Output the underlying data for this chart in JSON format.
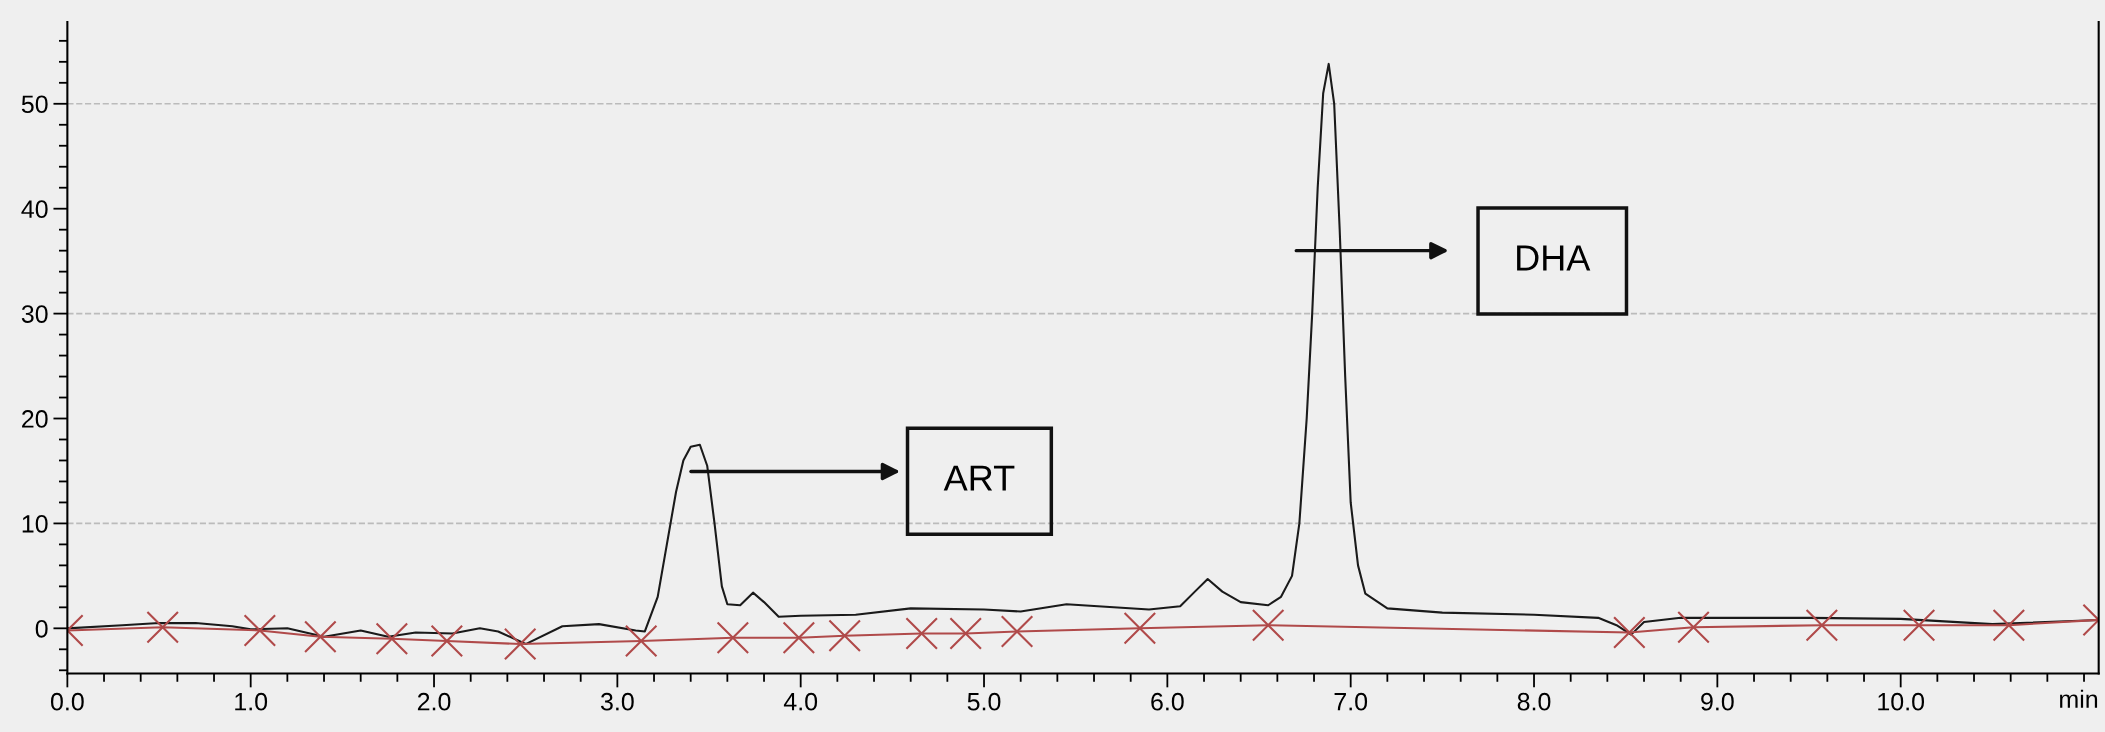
{
  "chart_data": {
    "type": "line",
    "xlabel": "min",
    "xlim": [
      0,
      11.08
    ],
    "ylim": [
      -4.3,
      57.8
    ],
    "xticks": [
      {
        "value": 0,
        "label": "0.0"
      },
      {
        "value": 1,
        "label": "1.0"
      },
      {
        "value": 2,
        "label": "2.0"
      },
      {
        "value": 3,
        "label": "3.0"
      },
      {
        "value": 4,
        "label": "4.0"
      },
      {
        "value": 5,
        "label": "5.0"
      },
      {
        "value": 6,
        "label": "6.0"
      },
      {
        "value": 7,
        "label": "7.0"
      },
      {
        "value": 8,
        "label": "8.0"
      },
      {
        "value": 9,
        "label": "9.0"
      },
      {
        "value": 10,
        "label": "10.0"
      }
    ],
    "yticks": [
      0,
      10,
      20,
      30,
      40,
      50
    ],
    "ref_lines": [
      {
        "axis": "y",
        "value": 10,
        "color": "#bbbbbb",
        "line_style": "dashed"
      },
      {
        "axis": "y",
        "value": 30,
        "color": "#bbbbbb",
        "line_style": "dashed"
      },
      {
        "axis": "y",
        "value": 50,
        "color": "#bbbbbb",
        "line_style": "dashed"
      }
    ],
    "annotations": [
      "ART",
      "DHA"
    ],
    "series": [
      {
        "color": "#1a1a1a",
        "marker": "none",
        "line_style": "solid",
        "x": [
          0.0,
          0.3,
          0.5,
          0.7,
          0.9,
          1.0,
          1.2,
          1.4,
          1.6,
          1.75,
          1.9,
          2.1,
          2.25,
          2.35,
          2.5,
          2.7,
          2.9,
          3.1,
          3.15,
          3.22,
          3.27,
          3.32,
          3.36,
          3.4,
          3.45,
          3.49,
          3.53,
          3.57,
          3.6,
          3.67,
          3.74,
          3.8,
          3.88,
          4.0,
          4.3,
          4.6,
          5.0,
          5.2,
          5.45,
          5.9,
          6.07,
          6.15,
          6.22,
          6.3,
          6.4,
          6.55,
          6.62,
          6.68,
          6.72,
          6.76,
          6.79,
          6.82,
          6.85,
          6.88,
          6.91,
          6.94,
          6.97,
          7.0,
          7.04,
          7.08,
          7.2,
          7.5,
          8.0,
          8.35,
          8.45,
          8.53,
          8.6,
          8.8,
          9.5,
          10.0,
          10.5,
          11.08
        ],
        "values": [
          0.0,
          0.3,
          0.5,
          0.5,
          0.2,
          -0.1,
          0.0,
          -0.8,
          -0.2,
          -0.8,
          -0.4,
          -0.5,
          0.0,
          -0.3,
          -1.5,
          0.2,
          0.4,
          -0.2,
          -0.3,
          3.0,
          8.0,
          13.0,
          16.0,
          17.3,
          17.5,
          15.5,
          10.0,
          4.0,
          2.3,
          2.2,
          3.4,
          2.5,
          1.1,
          1.2,
          1.3,
          1.9,
          1.8,
          1.6,
          2.3,
          1.8,
          2.1,
          3.5,
          4.7,
          3.5,
          2.5,
          2.2,
          3.0,
          5.0,
          10.0,
          20.0,
          30.0,
          42.0,
          51.0,
          53.8,
          50.0,
          38.0,
          24.0,
          12.0,
          6.0,
          3.3,
          1.9,
          1.5,
          1.3,
          1.0,
          0.3,
          -0.6,
          0.6,
          1.0,
          1.0,
          0.9,
          0.4,
          0.8
        ]
      },
      {
        "color": "#b04a4a",
        "marker": "cross",
        "line_style": "solid",
        "x": [
          0.0,
          0.52,
          1.05,
          1.38,
          1.77,
          2.07,
          2.47,
          3.13,
          3.63,
          3.99,
          4.24,
          4.66,
          4.9,
          5.18,
          5.85,
          6.55,
          8.52,
          8.87,
          9.57,
          10.1,
          10.59,
          11.08
        ],
        "values": [
          -0.2,
          0.1,
          -0.2,
          -0.8,
          -1.0,
          -1.2,
          -1.5,
          -1.2,
          -0.9,
          -0.9,
          -0.7,
          -0.5,
          -0.5,
          -0.3,
          0.0,
          0.3,
          -0.4,
          0.1,
          0.3,
          0.3,
          0.3,
          0.8
        ]
      }
    ]
  }
}
